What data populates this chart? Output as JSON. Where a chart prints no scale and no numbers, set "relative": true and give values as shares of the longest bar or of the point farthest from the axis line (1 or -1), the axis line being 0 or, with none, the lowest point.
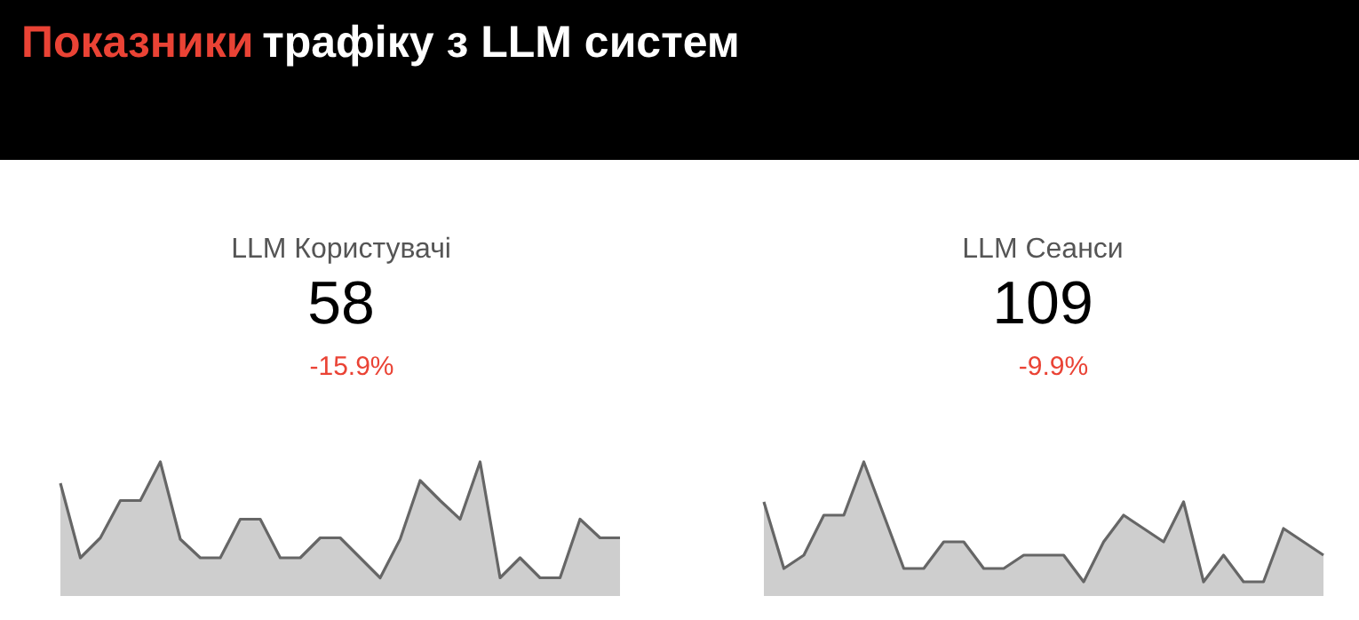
{
  "chart_data": [
    {
      "type": "other",
      "title": "Показники трафіку з LLM систем"
    },
    {
      "type": "area",
      "title": "LLM Користувачі",
      "annotations": [
        "58",
        "-15.9%"
      ],
      "relative": true,
      "categories": [
        null,
        null,
        null,
        null,
        null,
        null,
        null,
        null,
        null,
        null,
        null,
        null,
        null,
        null,
        null,
        null,
        null,
        null,
        null,
        null,
        null,
        null,
        null,
        null,
        null,
        null,
        null,
        null,
        null
      ],
      "series": [
        {
          "color": "#666666",
          "values": [
            0.84,
            0.28,
            0.43,
            0.71,
            0.71,
            1,
            0.42,
            0.28,
            0.28,
            0.57,
            0.57,
            0.28,
            0.28,
            0.43,
            0.43,
            0.28,
            0.13,
            0.42,
            0.86,
            0.71,
            0.57,
            1,
            0.13,
            0.28,
            0.13,
            0.13,
            0.57,
            0.43,
            0.43
          ]
        }
      ]
    },
    {
      "type": "area",
      "title": "LLM Сеанси",
      "annotations": [
        "109",
        "-9.9%"
      ],
      "relative": true,
      "categories": [
        null,
        null,
        null,
        null,
        null,
        null,
        null,
        null,
        null,
        null,
        null,
        null,
        null,
        null,
        null,
        null,
        null,
        null,
        null,
        null,
        null,
        null,
        null,
        null,
        null,
        null,
        null,
        null,
        null
      ],
      "series": [
        {
          "color": "#666666",
          "values": [
            0.7,
            0.2,
            0.3,
            0.6,
            0.6,
            1,
            0.6,
            0.2,
            0.2,
            0.4,
            0.4,
            0.2,
            0.2,
            0.3,
            0.3,
            0.3,
            0.1,
            0.4,
            0.6,
            0.5,
            0.4,
            0.7,
            0.1,
            0.3,
            0.1,
            0.1,
            0.5,
            0.4,
            0.3
          ]
        }
      ]
    }
  ]
}
